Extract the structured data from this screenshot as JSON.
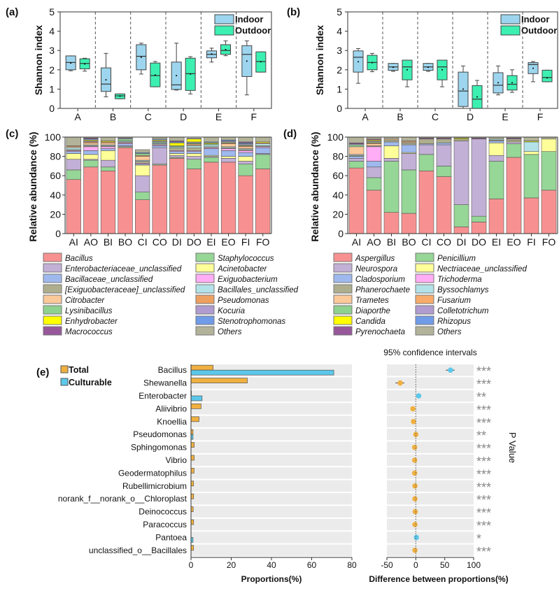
{
  "chart_data": [
    {
      "panel": "(a)",
      "type": "box",
      "ylabel": "Shannon index",
      "ylim": [
        0,
        5
      ],
      "yticks": [
        0,
        1,
        2,
        3,
        4,
        5
      ],
      "categories": [
        "A",
        "B",
        "C",
        "D",
        "E",
        "F"
      ],
      "legend": [
        "Indoor",
        "Outdoor"
      ],
      "legend_position": "top-right",
      "colors": {
        "Indoor": "#9dd5ee",
        "Outdoor": "#3cf0b2"
      },
      "stats_order": [
        "min",
        "q1",
        "median",
        "q3",
        "max",
        "mean"
      ],
      "series": [
        {
          "name": "Indoor",
          "values": [
            [
              1.95,
              2.0,
              2.38,
              2.72,
              2.72,
              2.35
            ],
            [
              0.6,
              0.88,
              1.26,
              2.1,
              2.85,
              1.48
            ],
            [
              1.78,
              2.0,
              2.7,
              3.3,
              3.38,
              2.65
            ],
            [
              0.95,
              0.98,
              1.22,
              2.4,
              3.38,
              1.7
            ],
            [
              2.4,
              2.62,
              2.8,
              2.98,
              3.12,
              2.82
            ],
            [
              0.7,
              1.65,
              2.8,
              3.25,
              3.5,
              2.45
            ]
          ]
        },
        {
          "name": "Outdoor",
          "values": [
            [
              1.93,
              2.05,
              2.33,
              2.57,
              2.6,
              2.3
            ],
            [
              0.5,
              0.5,
              0.65,
              0.75,
              0.75,
              0.64
            ],
            [
              1.12,
              1.12,
              1.7,
              2.35,
              2.43,
              1.73
            ],
            [
              0.75,
              0.93,
              1.8,
              2.6,
              2.68,
              1.78
            ],
            [
              2.73,
              2.8,
              3.0,
              3.3,
              3.5,
              3.05
            ],
            [
              1.88,
              1.88,
              2.43,
              2.93,
              2.93,
              2.42
            ]
          ]
        }
      ]
    },
    {
      "panel": "(b)",
      "type": "box",
      "ylabel": "Shannon index",
      "ylim": [
        0,
        5
      ],
      "yticks": [
        0,
        1,
        2,
        3,
        4,
        5
      ],
      "categories": [
        "A",
        "B",
        "C",
        "D",
        "E",
        "F"
      ],
      "legend": [
        "Indoor",
        "Outdoor"
      ],
      "legend_position": "top-right",
      "colors": {
        "Indoor": "#9dd5ee",
        "Outdoor": "#3cf0b2"
      },
      "stats_order": [
        "min",
        "q1",
        "median",
        "q3",
        "max",
        "mean"
      ],
      "series": [
        {
          "name": "Indoor",
          "values": [
            [
              1.3,
              1.88,
              2.65,
              2.98,
              3.1,
              2.42
            ],
            [
              1.92,
              1.97,
              2.15,
              2.33,
              2.33,
              2.13
            ],
            [
              1.92,
              1.97,
              2.15,
              2.33,
              2.33,
              2.13
            ],
            [
              0,
              0.1,
              0.9,
              1.88,
              2.2,
              1.0
            ],
            [
              0.7,
              0.8,
              1.2,
              1.85,
              2.2,
              1.33
            ],
            [
              1.38,
              1.8,
              2.27,
              2.37,
              2.43,
              2.08
            ]
          ]
        },
        {
          "name": "Outdoor",
          "values": [
            [
              1.9,
              2.0,
              2.38,
              2.75,
              2.85,
              2.37
            ],
            [
              1.12,
              1.48,
              2.15,
              2.5,
              2.5,
              2.0
            ],
            [
              1.12,
              1.48,
              2.15,
              2.5,
              2.5,
              2.0
            ],
            [
              0,
              0,
              0.48,
              1.18,
              1.45,
              0.6
            ],
            [
              0.83,
              0.95,
              1.25,
              1.7,
              2.0,
              1.33
            ],
            [
              1.38,
              1.38,
              1.6,
              1.98,
              1.98,
              1.58
            ]
          ]
        }
      ]
    },
    {
      "panel": "(c)",
      "type": "bar",
      "stacked": true,
      "ylabel": "Relative abundance (%)",
      "ylim": [
        0,
        100
      ],
      "yticks": [
        0,
        20,
        40,
        60,
        80,
        100
      ],
      "categories": [
        "AI",
        "AO",
        "BI",
        "BO",
        "CI",
        "CO",
        "DI",
        "DO",
        "EI",
        "EO",
        "FI",
        "FO"
      ],
      "legend": [
        "Bacillus",
        "Enterobacteriaceae_unclassified",
        "Bacillaceae_unclassified",
        "[Exiguobacteraceae]_unclassified",
        "Citrobacter",
        "Lysinibacillus",
        "Enhydrobacter",
        "Macrococcus",
        "Staphylococcus",
        "Acinetobacter",
        "Exiguobacterium",
        "Bacillales_unclassified",
        "Pseudomonas",
        "Kocuria",
        "Stenotrophomonas",
        "Others"
      ],
      "colors": {
        "Bacillus": "#f79191",
        "Enterobacteriaceae_unclassified": "#c3b0d6",
        "Bacillaceae_unclassified": "#9fb9ee",
        "[Exiguobacteraceae]_unclassified": "#aeae8e",
        "Citrobacter": "#fcc99a",
        "Lysinibacillus": "#8fd18f",
        "Enhydrobacter": "#ffff00",
        "Macrococcus": "#97579b",
        "Staphylococcus": "#96d696",
        "Acinetobacter": "#ffff99",
        "Exiguobacterium": "#ffadf5",
        "Bacillales_unclassified": "#b3e2e8",
        "Pseudomonas": "#eea060",
        "Kocuria": "#b09cd0",
        "Stenotrophomonas": "#6f9be8",
        "Others": "#b3b39a"
      },
      "stack_order": [
        "Bacillus",
        "Staphylococcus",
        "Enterobacteriaceae_unclassified",
        "Acinetobacter",
        "Bacillaceae_unclassified",
        "Exiguobacterium",
        "[Exiguobacteraceae]_unclassified",
        "Bacillales_unclassified",
        "Citrobacter",
        "Pseudomonas",
        "Lysinibacillus",
        "Kocuria",
        "Enhydrobacter",
        "Stenotrophomonas",
        "Macrococcus",
        "Others"
      ],
      "values": [
        [
          56,
          10,
          11,
          6,
          2,
          1,
          1,
          2,
          1,
          1,
          0,
          0,
          0,
          0,
          0,
          9
        ],
        [
          69,
          7,
          1,
          5,
          4,
          4,
          1,
          1,
          2,
          1,
          0,
          1,
          1,
          1,
          1,
          1
        ],
        [
          65,
          4,
          7,
          10,
          2,
          2,
          1,
          1,
          2,
          1,
          0,
          0,
          1,
          0,
          0,
          4
        ],
        [
          89,
          1,
          1,
          0,
          2,
          1,
          1,
          1,
          0,
          0,
          2,
          1,
          0,
          0,
          0,
          1
        ],
        [
          35,
          8,
          17,
          11,
          1,
          1,
          2,
          1,
          4,
          1,
          2,
          0,
          0,
          1,
          0,
          3
        ],
        [
          71,
          1,
          17,
          0,
          2,
          1,
          1,
          1,
          0,
          0,
          1,
          1,
          1,
          1,
          0,
          2
        ],
        [
          78,
          1,
          2,
          2,
          2,
          1,
          3,
          1,
          0,
          0,
          1,
          0,
          3,
          1,
          1,
          4
        ],
        [
          67,
          10,
          3,
          3,
          2,
          1,
          3,
          2,
          1,
          1,
          1,
          1,
          3,
          0,
          0,
          1
        ],
        [
          74,
          5,
          1,
          1,
          7,
          1,
          1,
          2,
          0,
          0,
          1,
          0,
          1,
          1,
          0,
          5
        ],
        [
          74,
          0,
          4,
          2,
          6,
          2,
          1,
          1,
          3,
          1,
          1,
          1,
          0,
          1,
          0,
          3
        ],
        [
          60,
          12,
          3,
          5,
          4,
          2,
          1,
          1,
          2,
          1,
          1,
          1,
          0,
          1,
          1,
          5
        ],
        [
          67,
          15,
          1,
          0,
          6,
          1,
          1,
          2,
          1,
          0,
          0,
          0,
          1,
          0,
          0,
          5
        ]
      ]
    },
    {
      "panel": "(d)",
      "type": "bar",
      "stacked": true,
      "ylabel": "Relative abundance (%)",
      "ylim": [
        0,
        100
      ],
      "yticks": [
        0,
        20,
        40,
        60,
        80,
        100
      ],
      "categories": [
        "AI",
        "AO",
        "BI",
        "BO",
        "CI",
        "CO",
        "DI",
        "DO",
        "EI",
        "EO",
        "FI",
        "FO"
      ],
      "legend": [
        "Aspergillus",
        "Neurospora",
        "Cladosporium",
        "Phanerochaete",
        "Trametes",
        "Diaporthe",
        "Candida",
        "Pyrenochaeta",
        "Penicillium",
        "Nectriaceae_unclassified",
        "Trichoderma",
        "Byssochlamys",
        "Fusarium",
        "Colletotrichum",
        "Rhizopus",
        "Others"
      ],
      "colors": {
        "Aspergillus": "#f79191",
        "Neurospora": "#c3b0d6",
        "Cladosporium": "#9fb9ee",
        "Phanerochaete": "#aeae8e",
        "Trametes": "#fcc99a",
        "Diaporthe": "#8fd18f",
        "Candida": "#ffff00",
        "Pyrenochaeta": "#97579b",
        "Penicillium": "#96d696",
        "Nectriaceae_unclassified": "#ffff99",
        "Trichoderma": "#ffadf5",
        "Byssochlamys": "#b3e2e8",
        "Fusarium": "#f8ab6a",
        "Colletotrichum": "#b09cd0",
        "Rhizopus": "#6f9be8",
        "Others": "#b3b39a"
      },
      "stack_order": [
        "Aspergillus",
        "Penicillium",
        "Neurospora",
        "Nectriaceae_unclassified",
        "Cladosporium",
        "Trichoderma",
        "Phanerochaete",
        "Byssochlamys",
        "Trametes",
        "Fusarium",
        "Diaporthe",
        "Colletotrichum",
        "Candida",
        "Rhizopus",
        "Pyrenochaeta",
        "Others"
      ],
      "values": [
        [
          68,
          7,
          3,
          0,
          2,
          0,
          1,
          1,
          8,
          0,
          2,
          1,
          0,
          0,
          1,
          6
        ],
        [
          45,
          13,
          11,
          0,
          6,
          15,
          1,
          0,
          2,
          1,
          1,
          1,
          1,
          0,
          1,
          2
        ],
        [
          22,
          53,
          3,
          13,
          4,
          0,
          2,
          0,
          1,
          0,
          0,
          0,
          0,
          0,
          0,
          2
        ],
        [
          21,
          45,
          17,
          1,
          8,
          0,
          2,
          0,
          1,
          1,
          0,
          0,
          0,
          0,
          0,
          4
        ],
        [
          65,
          17,
          10,
          0,
          1,
          0,
          5,
          0,
          0,
          0,
          0,
          0,
          0,
          0,
          1,
          1
        ],
        [
          59,
          11,
          22,
          0,
          2,
          0,
          4,
          0,
          0,
          0,
          0,
          0,
          0,
          0,
          1,
          1
        ],
        [
          7,
          23,
          66,
          0,
          0,
          0,
          2,
          0,
          0,
          0,
          0,
          0,
          1,
          0,
          0,
          1
        ],
        [
          12,
          6,
          80,
          0,
          0,
          0,
          0,
          0,
          0,
          0,
          0,
          0,
          0,
          0,
          1,
          1
        ],
        [
          36,
          39,
          6,
          13,
          2,
          0,
          1,
          1,
          0,
          0,
          0,
          0,
          0,
          0,
          0,
          2
        ],
        [
          79,
          14,
          2,
          1,
          0,
          0,
          2,
          0,
          0,
          0,
          0,
          0,
          0,
          0,
          1,
          1
        ],
        [
          37,
          45,
          0,
          3,
          0,
          0,
          0,
          10,
          0,
          0,
          0,
          0,
          1,
          0,
          0,
          4
        ],
        [
          45,
          40,
          0,
          13,
          0,
          0,
          0,
          0,
          0,
          0,
          0,
          0,
          0,
          0,
          0,
          2
        ]
      ]
    },
    {
      "panel": "(e)",
      "type": "bar+errorbar",
      "xlabel": "Proportions(%)",
      "xlim": [
        0,
        80
      ],
      "xticks": [
        0,
        20,
        40,
        60,
        80
      ],
      "diff_title": "95% confidence intervals",
      "diff_xlabel": "Difference between proportions(%)",
      "diff_xlim": [
        -50,
        100
      ],
      "diff_xticks": [
        -50,
        0,
        50,
        100
      ],
      "pvalue_label": "P Value",
      "legend": [
        "Total",
        "Culturable"
      ],
      "legend_position": "top-left",
      "colors": {
        "Total": "#f0b040",
        "Culturable": "#5bc8ea"
      },
      "categories": [
        "Bacillus",
        "Shewanella",
        "Enterobacter",
        "Aliivibrio",
        "Knoellia",
        "Pseudomonas",
        "Sphingomonas",
        "Vibrio",
        "Geodermatophilus",
        "Rubellimicrobium",
        "norank_f__norank_o__Chloroplast",
        "Deinococcus",
        "Paracoccus",
        "Pantoea",
        "unclassified_o__Bacillales"
      ],
      "series": [
        {
          "name": "Total",
          "values": [
            11,
            28,
            0.2,
            5,
            4,
            1,
            1.6,
            1.6,
            1.5,
            1.3,
            1.3,
            1.1,
            1.3,
            0,
            1.3
          ]
        },
        {
          "name": "Culturable",
          "values": [
            71,
            0,
            5.5,
            0,
            0,
            1,
            0,
            0,
            0,
            0,
            0,
            0,
            0,
            1,
            0
          ]
        }
      ],
      "difference": [
        60,
        -27,
        5,
        -5,
        -4,
        0,
        -2,
        -2,
        -2,
        -1.5,
        -1.5,
        -1,
        -1.5,
        1,
        -1.5
      ],
      "ci_low": [
        52,
        -35,
        4,
        -6,
        -6,
        -1,
        -3,
        -3,
        -3,
        -2.5,
        -2.5,
        -2,
        -2.5,
        0,
        -2.5
      ],
      "ci_high": [
        67,
        -20,
        6,
        -4,
        -2,
        1,
        -1,
        -1,
        -1,
        -0.5,
        -0.5,
        0,
        -0.5,
        2,
        -0.5
      ],
      "significance": [
        "***",
        "***",
        "**",
        "***",
        "***",
        "**",
        "***",
        "***",
        "***",
        "***",
        "***",
        "***",
        "***",
        "*",
        "***"
      ]
    }
  ]
}
